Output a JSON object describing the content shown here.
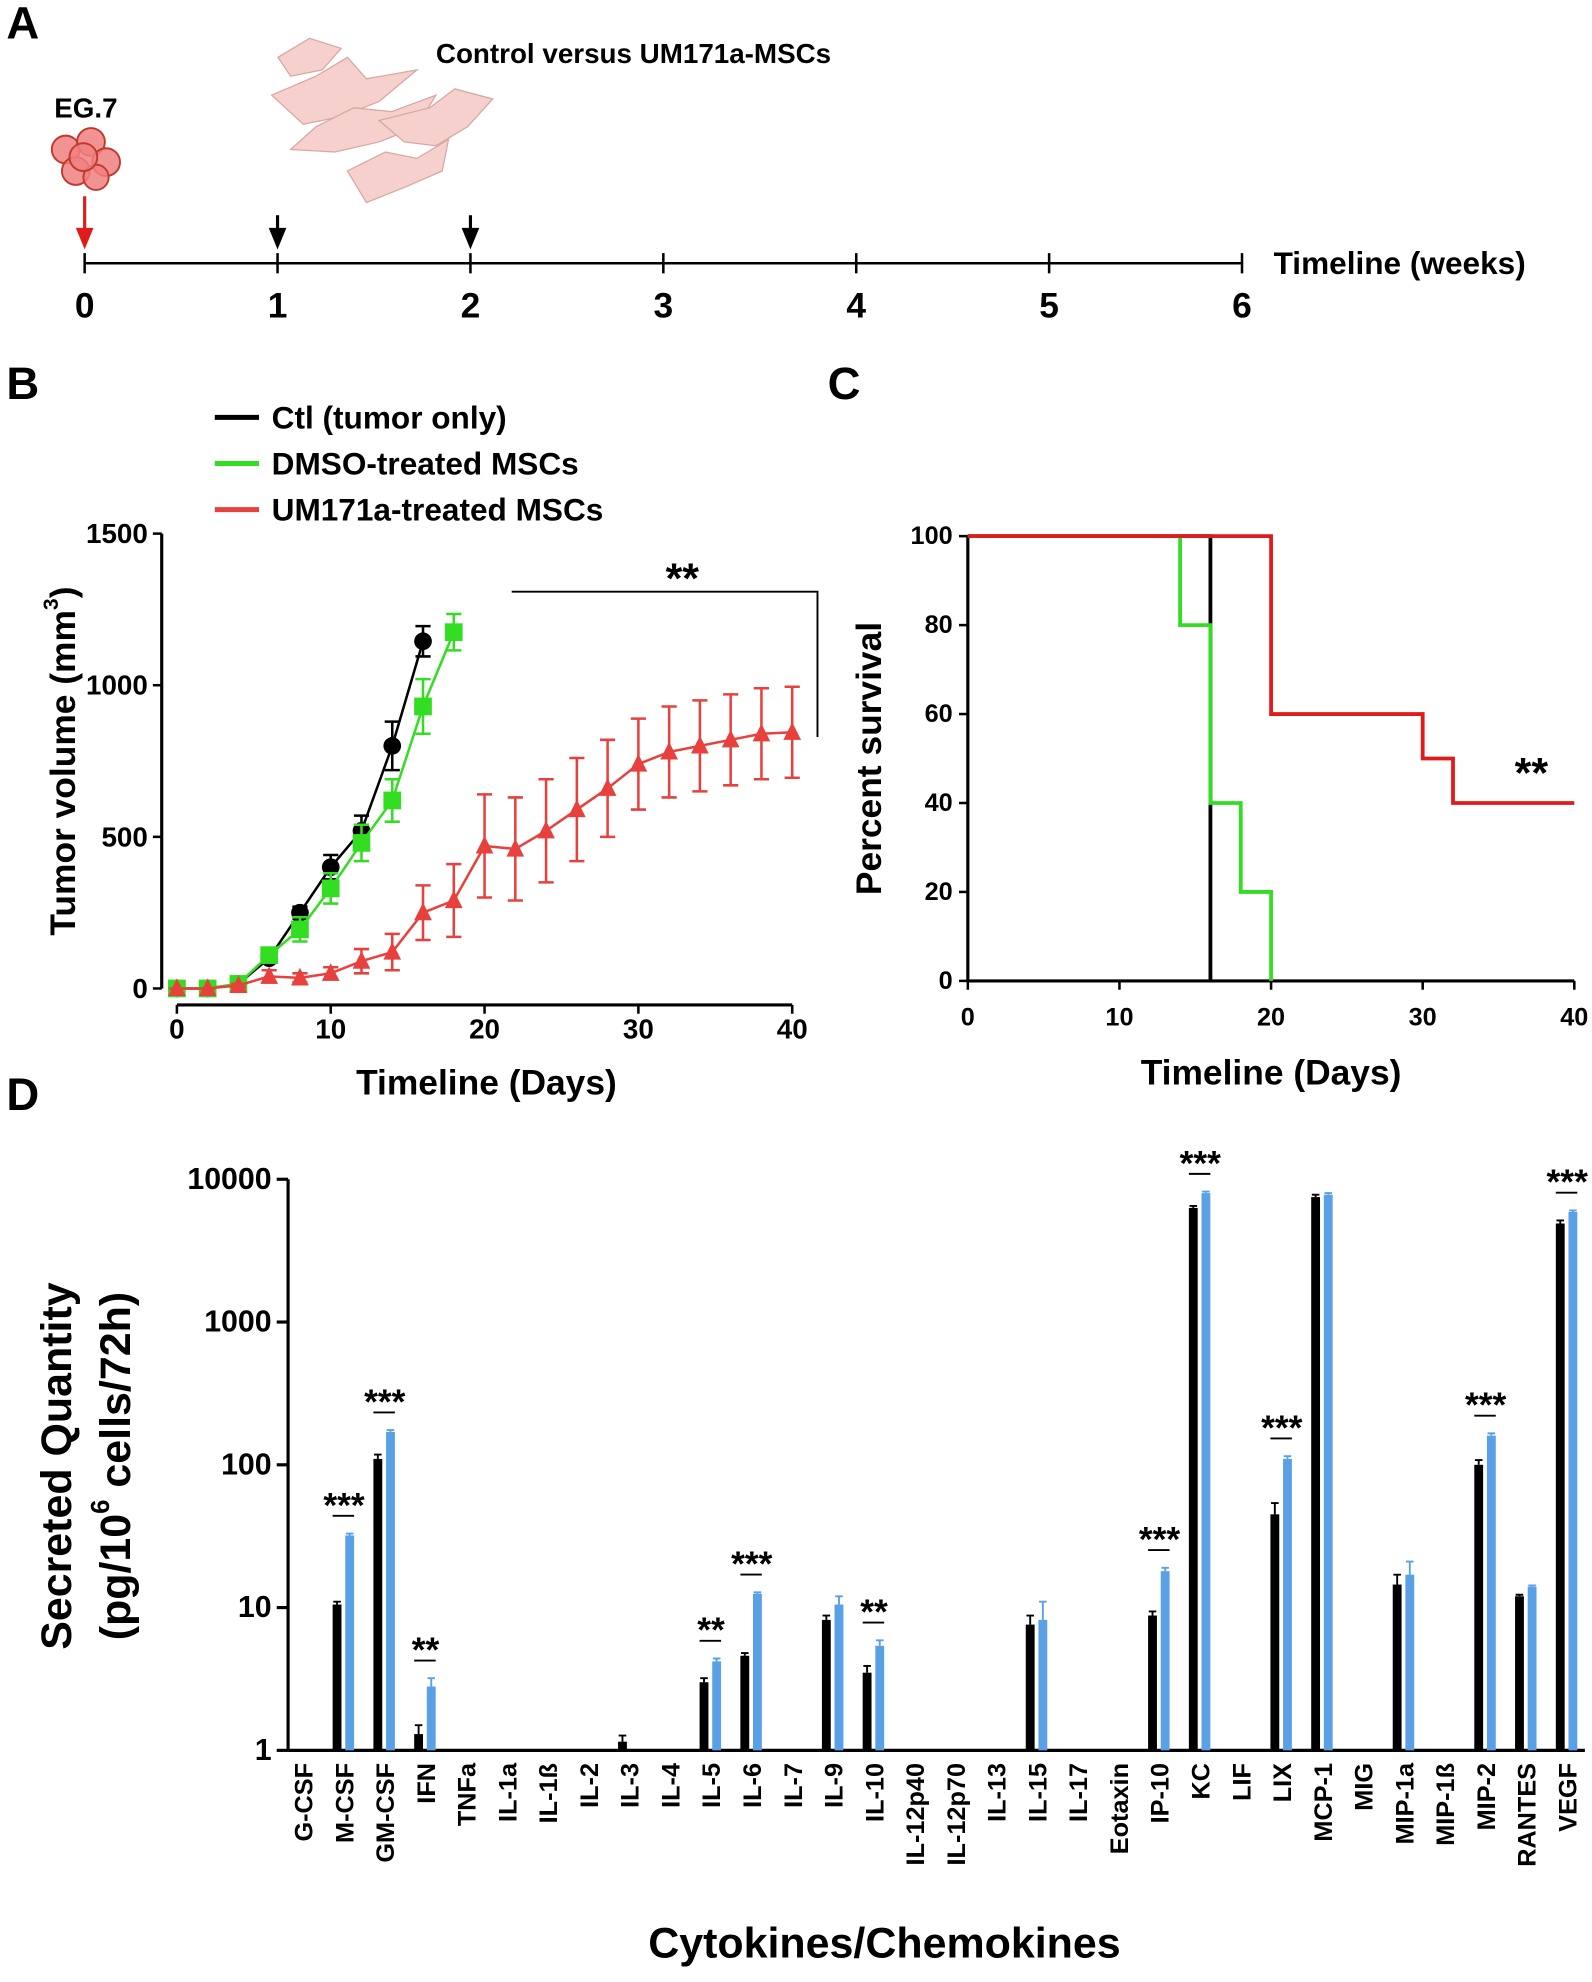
{
  "chart_data": [
    {
      "type": "timeline",
      "panel": "A",
      "title": "Control versus UM171a-MSCs",
      "cell_label": "EG.7",
      "x_label": "Timeline (weeks)",
      "xlim": [
        0,
        6
      ],
      "xticks": [
        0,
        1,
        2,
        3,
        4,
        5,
        6
      ],
      "tumor_week": 0,
      "msc_weeks": [
        1,
        2
      ],
      "tumor_color": "#e31a1c",
      "msc_color": "#000000"
    },
    {
      "type": "line",
      "panel": "B",
      "x_label": "Timeline (Days)",
      "y_label": {
        "text": "Tumor volume (mm",
        "sup": "3",
        "tail": ")"
      },
      "xlim": [
        0,
        40
      ],
      "xticks": [
        0,
        10,
        20,
        30,
        40
      ],
      "ylim": [
        0,
        1500
      ],
      "yticks": [
        0,
        500,
        1000,
        1500
      ],
      "significance": "**",
      "series": [
        {
          "name": "Ctl (tumor only)",
          "color": "#000000",
          "marker": "circle",
          "x": [
            0,
            2,
            4,
            6,
            8,
            10,
            12,
            14,
            16
          ],
          "values": [
            0,
            0,
            15,
            100,
            250,
            400,
            520,
            800,
            1145
          ],
          "errors": [
            0,
            0,
            5,
            15,
            20,
            40,
            50,
            80,
            50
          ]
        },
        {
          "name": "DMSO-treated MSCs",
          "color": "#33dd22",
          "marker": "square",
          "x": [
            0,
            2,
            4,
            6,
            8,
            10,
            12,
            14,
            16,
            18
          ],
          "values": [
            0,
            0,
            15,
            110,
            195,
            330,
            480,
            620,
            930,
            1175
          ],
          "errors": [
            0,
            0,
            5,
            20,
            40,
            50,
            60,
            70,
            90,
            60
          ]
        },
        {
          "name": "UM171a-treated MSCs",
          "color": "#e8403c",
          "marker": "triangle",
          "x": [
            0,
            2,
            4,
            6,
            8,
            10,
            12,
            14,
            16,
            18,
            20,
            22,
            24,
            26,
            28,
            30,
            32,
            34,
            36,
            38,
            40
          ],
          "values": [
            0,
            0,
            10,
            40,
            35,
            50,
            90,
            120,
            250,
            290,
            470,
            460,
            520,
            590,
            660,
            740,
            780,
            800,
            820,
            840,
            845
          ],
          "errors": [
            0,
            0,
            5,
            20,
            15,
            20,
            40,
            60,
            90,
            120,
            170,
            170,
            170,
            170,
            160,
            150,
            150,
            150,
            150,
            150,
            150
          ]
        }
      ]
    },
    {
      "type": "step",
      "panel": "C",
      "x_label": "Timeline (Days)",
      "y_label": "Percent survival",
      "xlim": [
        0,
        40
      ],
      "xticks": [
        0,
        10,
        20,
        30,
        40
      ],
      "ylim": [
        0,
        100
      ],
      "yticks": [
        0,
        20,
        40,
        60,
        80,
        100
      ],
      "significance": "**",
      "series": [
        {
          "color": "#000000",
          "x": [
            0,
            16
          ],
          "values": [
            100,
            0
          ]
        },
        {
          "color": "#33dd22",
          "x": [
            0,
            14,
            16,
            18,
            20
          ],
          "values": [
            100,
            80,
            40,
            20,
            0
          ]
        },
        {
          "color": "#e31a1c",
          "x": [
            0,
            20,
            30,
            32,
            40
          ],
          "values": [
            100,
            60,
            50,
            40,
            40
          ]
        }
      ]
    },
    {
      "type": "bar",
      "panel": "D",
      "x_label": "Cytokines/Chemokines",
      "y_label": {
        "line1": "Secreted Quantity",
        "text": "(pg/10",
        "sup": "6",
        "tail": " cells/72h)"
      },
      "log_scale": true,
      "ylim": [
        1,
        10000
      ],
      "yticks": [
        1,
        10,
        100,
        1000,
        10000
      ],
      "categories": [
        "G-CSF",
        "M-CSF",
        "GM-CSF",
        "IFN",
        "TNFa",
        "IL-1a",
        "IL-1ß",
        "IL-2",
        "IL-3",
        "IL-4",
        "IL-5",
        "IL-6",
        "IL-7",
        "IL-9",
        "IL-10",
        "IL-12p40",
        "IL-12p70",
        "IL-13",
        "IL-15",
        "IL-17",
        "Eotaxin",
        "IP-10",
        "KC",
        "LIF",
        "LIX",
        "MCP-1",
        "MIG",
        "MIP-1a",
        "MIP-1ß",
        "MIP-2",
        "RANTES",
        "VEGF"
      ],
      "series": [
        {
          "color": "#000000",
          "values": [
            1,
            10.5,
            110,
            1.3,
            null,
            null,
            null,
            null,
            1.15,
            null,
            3.0,
            4.6,
            null,
            8.2,
            3.5,
            null,
            null,
            null,
            7.6,
            null,
            null,
            8.8,
            6300,
            null,
            45,
            7500,
            null,
            14.5,
            null,
            100,
            12,
            4900
          ],
          "errors": [
            0,
            0.5,
            8,
            0.2,
            null,
            null,
            null,
            null,
            0.12,
            null,
            0.2,
            0.2,
            null,
            0.6,
            0.4,
            null,
            null,
            null,
            1.2,
            null,
            null,
            0.6,
            200,
            null,
            9,
            300,
            null,
            2.5,
            null,
            8,
            0.3,
            250
          ]
        },
        {
          "color": "#5aa0e6",
          "values": [
            null,
            32,
            170,
            2.8,
            null,
            null,
            null,
            null,
            null,
            null,
            4.2,
            12.5,
            null,
            10.5,
            5.4,
            null,
            null,
            null,
            8.2,
            null,
            null,
            18,
            8000,
            null,
            110,
            7800,
            null,
            17,
            null,
            160,
            14,
            5900
          ],
          "errors": [
            null,
            1,
            5,
            0.4,
            null,
            null,
            null,
            null,
            null,
            null,
            0.2,
            0.3,
            null,
            1.5,
            0.5,
            null,
            null,
            null,
            2.8,
            null,
            null,
            1,
            200,
            null,
            5,
            200,
            null,
            4,
            null,
            6,
            0.3,
            150
          ]
        }
      ],
      "significance": [
        {
          "category": "M-CSF",
          "text": "***"
        },
        {
          "category": "GM-CSF",
          "text": "***"
        },
        {
          "category": "IFN",
          "text": "**"
        },
        {
          "category": "IL-5",
          "text": "**"
        },
        {
          "category": "IL-6",
          "text": "***"
        },
        {
          "category": "IL-10",
          "text": "**"
        },
        {
          "category": "IP-10",
          "text": "***"
        },
        {
          "category": "KC",
          "text": "***"
        },
        {
          "category": "LIX",
          "text": "***"
        },
        {
          "category": "MIP-2",
          "text": "***"
        },
        {
          "category": "VEGF",
          "text": "***"
        }
      ]
    }
  ]
}
